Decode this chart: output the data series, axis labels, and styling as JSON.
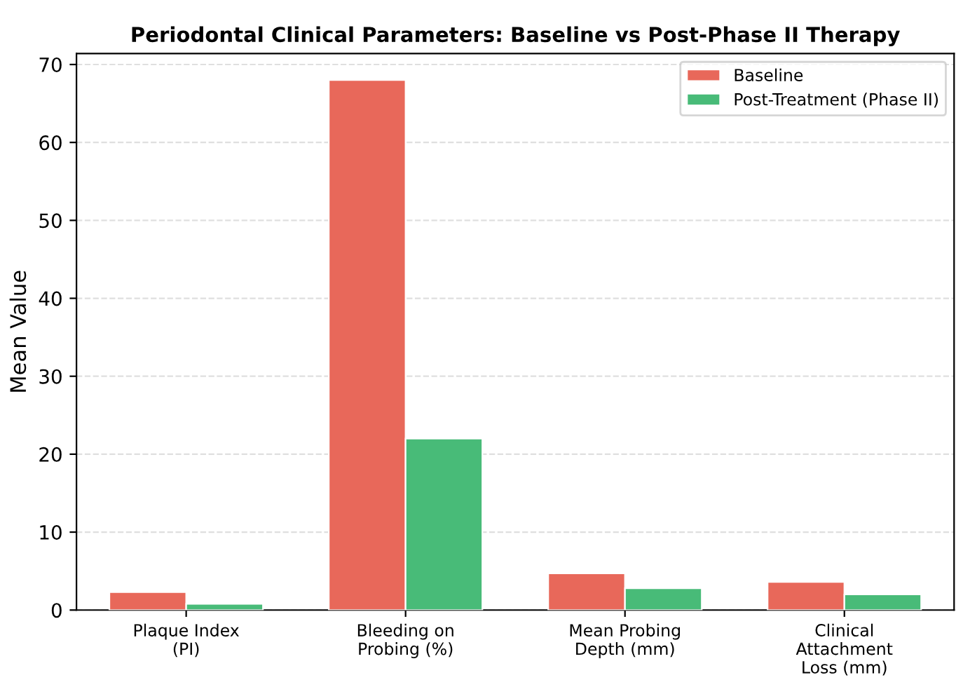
{
  "chart_data": {
    "type": "bar",
    "title": "Periodontal Clinical Parameters: Baseline vs Post-Phase II Therapy",
    "ylabel": "Mean Value",
    "categories": [
      "Plaque Index\n(PI)",
      "Bleeding on\nProbing (%)",
      "Mean Probing\nDepth (mm)",
      "Clinical\nAttachment\nLoss (mm)"
    ],
    "series": [
      {
        "name": "Baseline",
        "color": "#e8685a",
        "values": [
          2.3,
          68,
          4.7,
          3.6
        ]
      },
      {
        "name": "Post-Treatment (Phase II)",
        "color": "#48bb78",
        "values": [
          0.8,
          22,
          2.8,
          2.0
        ]
      }
    ],
    "ylim": [
      0,
      71.4
    ],
    "yticks": [
      0,
      10,
      20,
      30,
      40,
      50,
      60,
      70
    ],
    "grid": "y",
    "legend": "top right"
  }
}
